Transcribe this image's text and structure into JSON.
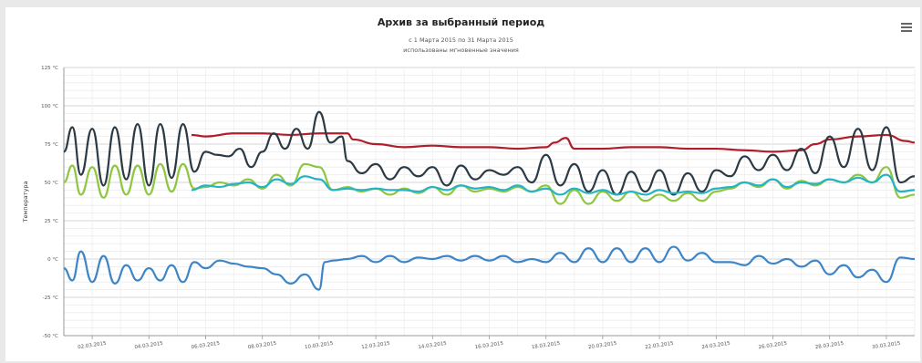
{
  "chart_data": {
    "type": "line",
    "title": "Архив за выбранный период",
    "subtitle": "с 1 Марта 2015 по 31 Марта 2015",
    "subtitle2": "использованы мгновенные значения",
    "ylabel": "Температура",
    "ylim": [
      -50,
      125
    ],
    "y_ticks": [
      "125 °C",
      "100 °C",
      "75 °C",
      "50 °C",
      "25 °C",
      "0 °C",
      "-25 °C",
      "-50 °C"
    ],
    "x_ticks": [
      "02.03.2015",
      "04.03.2015",
      "06.03.2015",
      "08.03.2015",
      "10.03.2015",
      "12.03.2015",
      "14.03.2015",
      "16.03.2015",
      "18.03.2015",
      "20.03.2015",
      "22.03.2015",
      "24.03.2015",
      "26.03.2015",
      "28.03.2015",
      "30.03.2015"
    ],
    "x_range": [
      1,
      31
    ],
    "grid": true,
    "series": [
      {
        "color": "#b01e2a",
        "x": [
          5.5,
          6,
          7,
          8,
          9,
          10,
          11,
          11.2,
          12,
          13,
          14,
          15,
          16,
          17,
          18,
          18.3,
          18.7,
          19,
          20,
          21,
          22,
          23,
          24,
          25,
          26,
          27,
          27.5,
          28,
          29,
          30,
          30.7,
          31
        ],
        "values": [
          81,
          80,
          82,
          82,
          81,
          82,
          82,
          78,
          75,
          73,
          74,
          73,
          73,
          72,
          73,
          76,
          79,
          72,
          72,
          73,
          73,
          72,
          72,
          71,
          70,
          71,
          75,
          78,
          80,
          81,
          77,
          76
        ]
      },
      {
        "color": "#2b3a44",
        "x": [
          1,
          1.3,
          1.6,
          2,
          2.4,
          2.8,
          3.2,
          3.6,
          4,
          4.4,
          4.8,
          5.2,
          5.6,
          6,
          6.4,
          6.8,
          7.2,
          7.6,
          8,
          8.4,
          8.8,
          9.2,
          9.6,
          10,
          10.4,
          10.8,
          11,
          11.5,
          12,
          12.5,
          13,
          13.5,
          14,
          14.5,
          15,
          15.5,
          16,
          16.5,
          17,
          17.5,
          18,
          18.5,
          19,
          19.5,
          20,
          20.5,
          21,
          21.5,
          22,
          22.5,
          23,
          23.5,
          24,
          24.5,
          25,
          25.5,
          26,
          26.5,
          27,
          27.5,
          28,
          28.5,
          29,
          29.5,
          30,
          30.5,
          31
        ],
        "values": [
          70,
          86,
          55,
          85,
          48,
          86,
          52,
          88,
          48,
          88,
          53,
          88,
          57,
          70,
          68,
          67,
          72,
          60,
          70,
          82,
          72,
          85,
          72,
          96,
          76,
          80,
          64,
          56,
          62,
          52,
          60,
          54,
          60,
          48,
          61,
          52,
          58,
          55,
          60,
          50,
          68,
          48,
          62,
          44,
          58,
          42,
          57,
          44,
          58,
          42,
          56,
          44,
          58,
          54,
          67,
          58,
          68,
          58,
          72,
          56,
          80,
          60,
          85,
          58,
          86,
          50,
          54
        ]
      },
      {
        "color": "#8dc63f",
        "x": [
          1,
          1.3,
          1.6,
          2,
          2.4,
          2.8,
          3.2,
          3.6,
          4,
          4.4,
          4.8,
          5.2,
          5.6,
          6,
          6.5,
          7,
          7.5,
          8,
          8.5,
          9,
          9.5,
          10,
          10.5,
          11,
          11.5,
          12,
          12.5,
          13,
          13.5,
          14,
          14.5,
          15,
          15.5,
          16,
          16.5,
          17,
          17.5,
          18,
          18.5,
          19,
          19.5,
          20,
          20.5,
          21,
          21.5,
          22,
          22.5,
          23,
          23.5,
          24,
          24.5,
          25,
          25.5,
          26,
          26.5,
          27,
          27.5,
          28,
          28.5,
          29,
          29.5,
          30,
          30.5,
          31
        ],
        "values": [
          50,
          61,
          42,
          60,
          40,
          61,
          42,
          61,
          42,
          62,
          44,
          62,
          46,
          47,
          50,
          48,
          52,
          46,
          55,
          48,
          62,
          60,
          45,
          47,
          44,
          46,
          42,
          46,
          43,
          47,
          42,
          48,
          44,
          46,
          44,
          47,
          44,
          48,
          36,
          45,
          36,
          44,
          38,
          44,
          38,
          42,
          38,
          43,
          38,
          44,
          46,
          50,
          47,
          52,
          46,
          51,
          48,
          52,
          50,
          55,
          50,
          60,
          40,
          42
        ]
      },
      {
        "color": "#26b3c4",
        "x": [
          5.5,
          6,
          6.5,
          7,
          7.5,
          8,
          8.5,
          9,
          9.5,
          10,
          10.5,
          11,
          11.5,
          12,
          12.5,
          13,
          13.5,
          14,
          14.5,
          15,
          15.5,
          16,
          16.5,
          17,
          17.5,
          18,
          18.5,
          19,
          19.5,
          20,
          20.5,
          21,
          21.5,
          22,
          22.5,
          23,
          23.5,
          24,
          24.5,
          25,
          25.5,
          26,
          26.5,
          27,
          27.5,
          28,
          28.5,
          29,
          29.5,
          30,
          30.5,
          31
        ],
        "values": [
          45,
          48,
          47,
          49,
          50,
          47,
          52,
          49,
          54,
          52,
          45,
          46,
          45,
          46,
          45,
          45,
          44,
          47,
          45,
          48,
          46,
          47,
          45,
          48,
          44,
          46,
          42,
          46,
          43,
          45,
          42,
          44,
          42,
          45,
          43,
          44,
          43,
          46,
          47,
          50,
          48,
          52,
          47,
          50,
          49,
          52,
          50,
          53,
          50,
          55,
          44,
          45
        ]
      },
      {
        "color": "#3d85c6",
        "x": [
          1,
          1.3,
          1.6,
          2,
          2.4,
          2.8,
          3.2,
          3.6,
          4,
          4.4,
          4.8,
          5.2,
          5.6,
          6,
          6.5,
          7,
          7.5,
          8,
          8.5,
          9,
          9.5,
          10,
          10.2,
          10.5,
          11,
          11.5,
          12,
          12.5,
          13,
          13.5,
          14,
          14.5,
          15,
          15.5,
          16,
          16.5,
          17,
          17.5,
          18,
          18.5,
          19,
          19.5,
          20,
          20.5,
          21,
          21.5,
          22,
          22.5,
          23,
          23.5,
          24,
          24.5,
          25,
          25.5,
          26,
          26.5,
          27,
          27.5,
          28,
          28.5,
          29,
          29.5,
          30,
          30.5,
          31
        ],
        "values": [
          -6,
          -14,
          5,
          -15,
          2,
          -16,
          -4,
          -14,
          -6,
          -14,
          -4,
          -15,
          -2,
          -6,
          -1,
          -3,
          -5,
          -6,
          -10,
          -16,
          -10,
          -20,
          -2,
          -1,
          0,
          2,
          -2,
          2,
          -2,
          1,
          0,
          2,
          -1,
          2,
          -1,
          2,
          -2,
          0,
          -2,
          4,
          -2,
          7,
          -2,
          7,
          -2,
          7,
          -2,
          8,
          -1,
          4,
          -2,
          -2,
          -4,
          2,
          -3,
          0,
          -5,
          -1,
          -10,
          -4,
          -12,
          -7,
          -15,
          1,
          0
        ]
      }
    ]
  }
}
